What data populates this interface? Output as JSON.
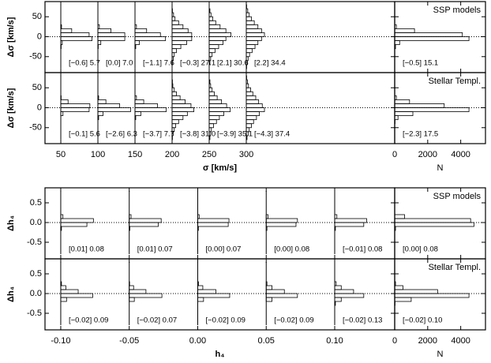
{
  "chart_data": [
    {
      "type": "histogram",
      "xlabel": "σ [km/s]",
      "ylabel": "Δσ [km/s]",
      "nlabel": "N",
      "xlim": [
        28.7,
        500
      ],
      "xticks": [
        50,
        100,
        150,
        200,
        250,
        300
      ],
      "ylim": [
        -90,
        88
      ],
      "yticks": [
        -50,
        0,
        50
      ],
      "nlim": [
        0,
        5500
      ],
      "nticks": [
        0,
        2000,
        4000
      ],
      "positions": [
        50,
        100,
        150,
        200,
        250,
        300
      ],
      "bins": [
        -80,
        -70,
        -60,
        -50,
        -40,
        -30,
        -20,
        -10,
        0,
        10,
        20,
        30,
        40,
        50,
        60,
        70,
        80
      ],
      "rows": [
        {
          "name": "SSP models",
          "counts": [
            [
              0,
              0,
              0,
              0,
              0,
              50,
              200,
              4300,
              3900,
              1500,
              100,
              0,
              0,
              0,
              0,
              0
            ],
            [
              0,
              0,
              0,
              0,
              0,
              50,
              400,
              3700,
              3700,
              1800,
              200,
              0,
              0,
              0,
              0,
              0
            ],
            [
              0,
              0,
              0,
              0,
              0,
              100,
              600,
              4200,
              3500,
              1600,
              200,
              0,
              0,
              0,
              0,
              0
            ],
            [
              0,
              50,
              150,
              300,
              600,
              1200,
              2000,
              2700,
              2700,
              2200,
              1500,
              900,
              400,
              200,
              50,
              0
            ],
            [
              0,
              100,
              200,
              400,
              800,
              1300,
              1900,
              2300,
              3000,
              2300,
              1500,
              900,
              500,
              250,
              100,
              0
            ],
            [
              50,
              150,
              250,
              450,
              800,
              1200,
              1600,
              2100,
              2500,
              2100,
              1600,
              1100,
              700,
              400,
              200,
              50
            ]
          ],
          "labels": [
            "[−0.6] 5.7",
            "[0.0] 7.0",
            "[−1.1] 7.6",
            "[−0.3] 27.1",
            "[2.1] 30.6",
            "[2.2] 34.4"
          ],
          "total": [
            0,
            0,
            0,
            0,
            0,
            50,
            300,
            4500,
            4100,
            1200,
            100,
            0,
            0,
            0,
            0,
            0
          ],
          "total_label": "[−0.5] 15.1"
        },
        {
          "name": "Stellar Templ.",
          "counts": [
            [
              0,
              0,
              0,
              0,
              0,
              0,
              300,
              3900,
              4000,
              1000,
              50,
              0,
              0,
              0,
              0,
              0
            ],
            [
              0,
              0,
              0,
              0,
              0,
              100,
              700,
              4500,
              3000,
              1100,
              100,
              0,
              0,
              0,
              0,
              0
            ],
            [
              0,
              0,
              0,
              0,
              0,
              100,
              800,
              4300,
              3100,
              1200,
              200,
              0,
              0,
              0,
              0,
              0
            ],
            [
              50,
              150,
              300,
              500,
              900,
              1500,
              2100,
              3000,
              2600,
              1800,
              1100,
              600,
              300,
              100,
              50,
              0
            ],
            [
              100,
              200,
              300,
              600,
              1000,
              1400,
              2000,
              2900,
              2400,
              1700,
              1100,
              700,
              400,
              200,
              100,
              0
            ],
            [
              100,
              250,
              400,
              700,
              1000,
              1400,
              1800,
              2500,
              2200,
              1700,
              1300,
              900,
              600,
              300,
              150,
              50
            ]
          ],
          "labels": [
            "[−0.1] 5.6",
            "[−2.6] 6.3",
            "[−3.7] 7.7",
            "[−3.8] 31.0",
            "[−3.9] 35.1",
            "[−4.3] 37.4"
          ],
          "total": [
            0,
            0,
            0,
            0,
            20,
            200,
            1100,
            4500,
            3000,
            900,
            100,
            0,
            0,
            0,
            0,
            0
          ],
          "total_label": "[−2.3] 17.5"
        }
      ]
    },
    {
      "type": "histogram",
      "xlabel": "h₄",
      "ylabel": "Δh₄",
      "nlabel": "N",
      "xlim": [
        -0.1115,
        0.1438
      ],
      "xticks": [
        {
          "value": -0.1,
          "label": "-0.10"
        },
        -0.05,
        {
          "value": 0,
          "label": "0.00"
        },
        0.05,
        {
          "value": 0.1,
          "label": "0.10"
        }
      ],
      "ylim": [
        -0.92,
        0.88
      ],
      "yticks": [
        -0.5,
        {
          "value": 0,
          "label": "0.0"
        },
        0.5
      ],
      "nlim": [
        0,
        5500
      ],
      "nticks": [
        0,
        2000,
        4000
      ],
      "positions": [
        -0.1,
        -0.05,
        0,
        0.05,
        0.1
      ],
      "bins": [
        -0.8,
        -0.7,
        -0.6,
        -0.5,
        -0.4,
        -0.3,
        -0.2,
        -0.1,
        0,
        0.1,
        0.2,
        0.3,
        0.4,
        0.5,
        0.6,
        0.7,
        0.8
      ],
      "rows": [
        {
          "name": "SSP models",
          "counts": [
            [
              0,
              0,
              0,
              0,
              0,
              0,
              100,
              3600,
              4500,
              300,
              0,
              0,
              0,
              0,
              0,
              0
            ],
            [
              0,
              0,
              0,
              0,
              0,
              0,
              80,
              4000,
              4400,
              250,
              0,
              0,
              0,
              0,
              0,
              0
            ],
            [
              0,
              0,
              0,
              0,
              0,
              0,
              90,
              4200,
              4300,
              200,
              0,
              0,
              0,
              0,
              0,
              0
            ],
            [
              0,
              0,
              0,
              0,
              0,
              0,
              100,
              4100,
              4300,
              250,
              0,
              0,
              0,
              0,
              0,
              0
            ],
            [
              0,
              0,
              0,
              0,
              0,
              0,
              100,
              4000,
              4400,
              300,
              0,
              0,
              0,
              0,
              0,
              0
            ]
          ],
          "labels": [
            "[0.01] 0.08",
            "[0.01] 0.07",
            "[0.00] 0.07",
            "[0.00] 0.08",
            "[−0.01] 0.08"
          ],
          "total": [
            0,
            0,
            0,
            0,
            0,
            0,
            50,
            4800,
            4600,
            600,
            0,
            0,
            0,
            0,
            0,
            0
          ],
          "total_label": "[0.00] 0.08"
        },
        {
          "name": "Stellar Templ.",
          "counts": [
            [
              0,
              0,
              0,
              0,
              0,
              0,
              800,
              4400,
              2400,
              700,
              100,
              0,
              0,
              0,
              0,
              0
            ],
            [
              0,
              0,
              0,
              0,
              0,
              0,
              700,
              4500,
              2300,
              600,
              50,
              0,
              0,
              0,
              0,
              0
            ],
            [
              0,
              0,
              0,
              0,
              0,
              0,
              800,
              4400,
              2500,
              700,
              100,
              0,
              0,
              0,
              0,
              0
            ],
            [
              0,
              0,
              0,
              0,
              0,
              0,
              800,
              4300,
              2500,
              800,
              100,
              0,
              0,
              0,
              0,
              0
            ],
            [
              0,
              0,
              0,
              0,
              0,
              100,
              900,
              4000,
              2600,
              900,
              200,
              0,
              0,
              0,
              0,
              0
            ]
          ],
          "labels": [
            "[−0.02] 0.09",
            "[−0.02] 0.07",
            "[−0.02] 0.09",
            "[−0.02] 0.09",
            "[−0.02] 0.13"
          ],
          "total": [
            0,
            0,
            0,
            0,
            0,
            20,
            1000,
            4500,
            2600,
            500,
            50,
            0,
            0,
            0,
            0,
            0
          ],
          "total_label": "[−0.02] 0.10"
        }
      ]
    }
  ]
}
